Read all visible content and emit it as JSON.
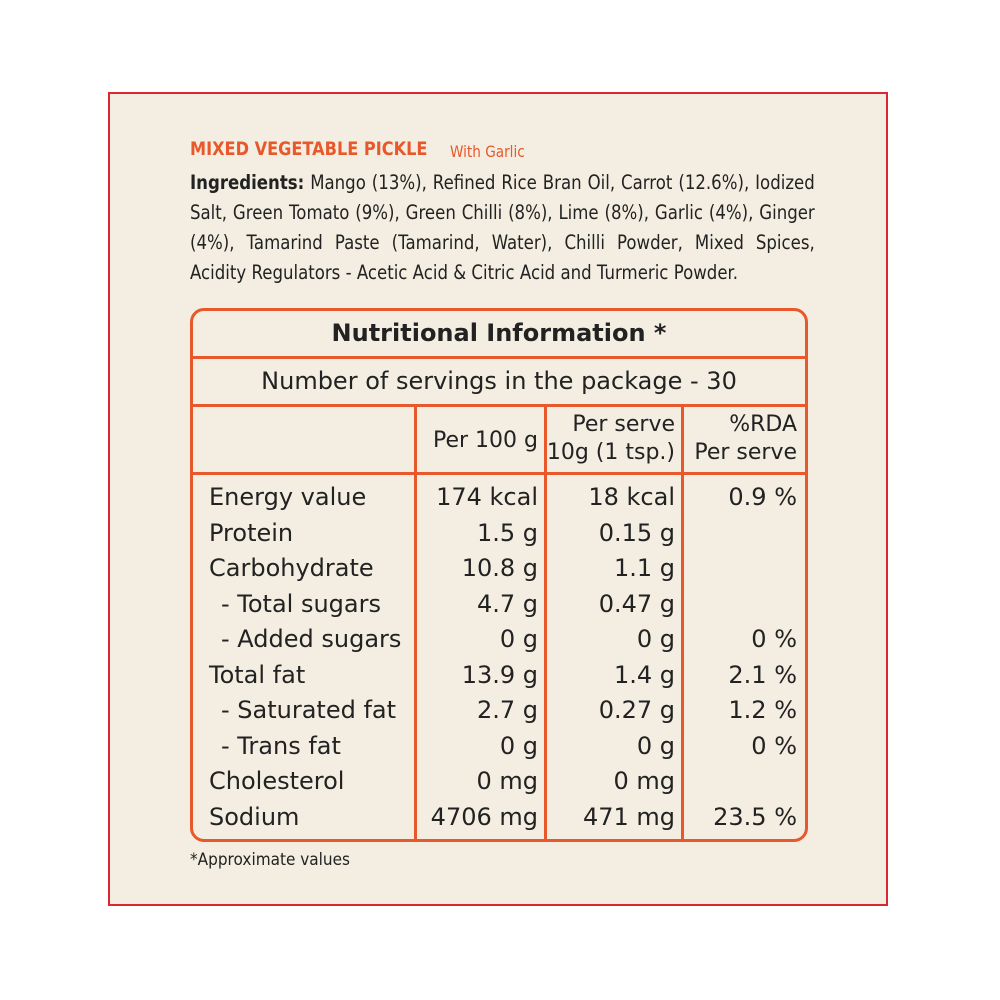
{
  "label": {
    "title": "MIXED VEGETABLE PICKLE",
    "subtitle": "With Garlic",
    "ingredients_label": "Ingredients:",
    "ingredients": "Mango (13%), Refined Rice Bran Oil, Carrot (12.6%), Iodized Salt, Green Tomato (9%), Green Chilli (8%), Lime (8%), Garlic (4%), Ginger (4%), Tamarind Paste (Tamarind, Water), Chilli Powder, Mixed Spices, Acidity Regulators - Acetic Acid & Citric Acid and Turmeric Powder.",
    "footnote": "*Approximate values"
  },
  "table": {
    "title": "Nutritional Information *",
    "servings": "Number of servings in the package - 30",
    "header": [
      null,
      [
        "Per 100 g"
      ],
      [
        "Per serve",
        "10g (1 tsp.)"
      ],
      [
        "%RDA",
        "Per serve"
      ]
    ],
    "rows": [
      [
        "Energy value",
        "174 kcal",
        "18 kcal",
        "0.9 %"
      ],
      [
        "Protein",
        "1.5 g",
        "0.15 g",
        null
      ],
      [
        "Carbohydrate",
        "10.8 g",
        "1.1 g",
        null
      ],
      [
        "- Total sugars",
        "4.7 g",
        "0.47 g",
        null
      ],
      [
        "- Added sugars",
        "0 g",
        "0 g",
        "0 %"
      ],
      [
        "Total fat",
        "13.9 g",
        "1.4 g",
        "2.1 %"
      ],
      [
        "- Saturated fat",
        "2.7 g",
        "0.27 g",
        "1.2 %"
      ],
      [
        "- Trans fat",
        "0 g",
        "0 g",
        "0 %"
      ],
      [
        "Cholesterol",
        "0 mg",
        "0 mg",
        null
      ],
      [
        "Sodium",
        "4706 mg",
        "471 mg",
        "23.5 %"
      ]
    ]
  }
}
